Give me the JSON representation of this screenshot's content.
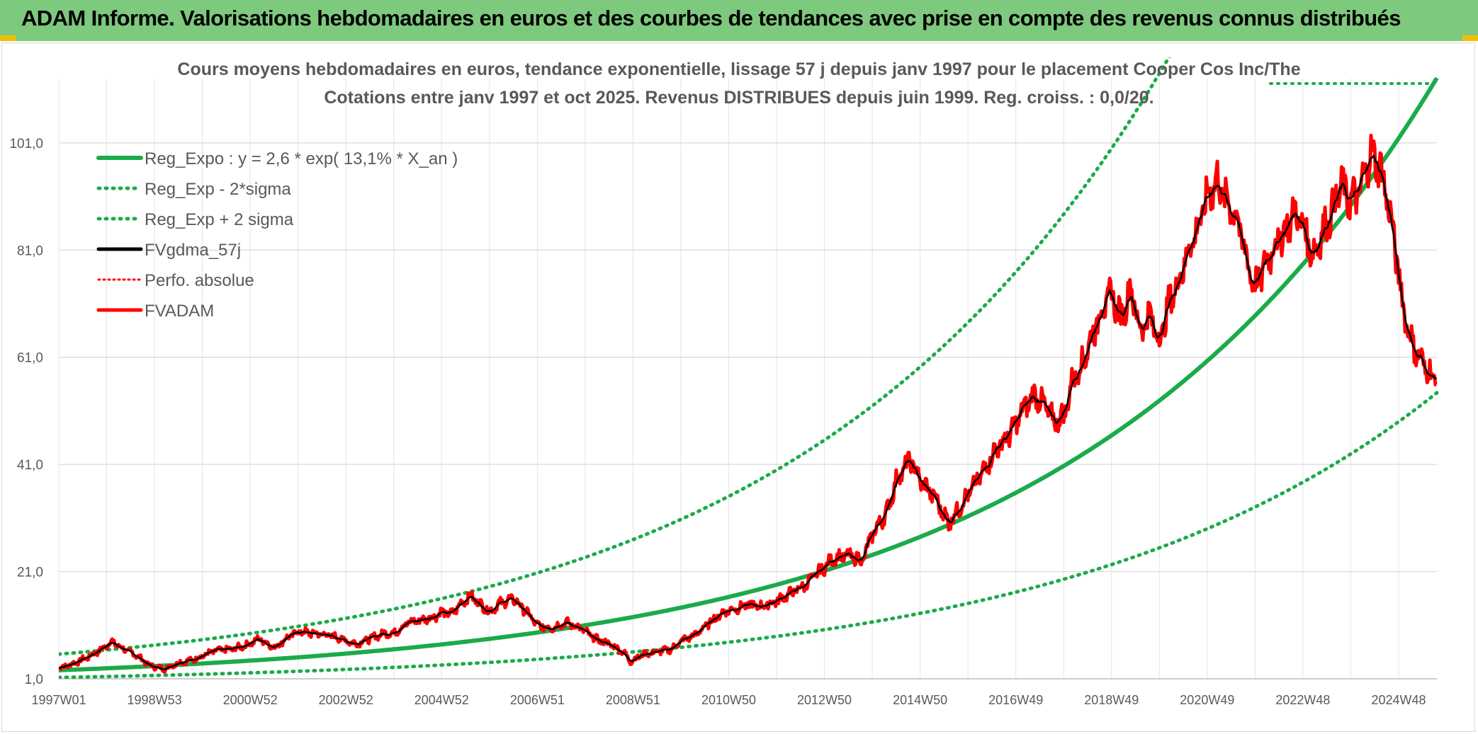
{
  "header": {
    "title": "ADAM Informe. Valorisations hebdomadaires en euros et des courbes de tendances avec prise en compte des revenus connus distribués",
    "background_color": "#7dc97d"
  },
  "chart_data": {
    "type": "line",
    "title": "Cours moyens hebdomadaires en euros, tendance exponentielle, lissage 57 j depuis janv 1997 pour le placement Cooper Cos Inc/The",
    "subtitle": "Cotations entre janv 1997 et oct 2025. Revenus DISTRIBUES depuis juin 1999. Reg. croiss. : 0,0/20.",
    "x_tick_labels": [
      "1997W01",
      "1998W53",
      "2000W52",
      "2002W52",
      "2004W52",
      "2006W51",
      "2008W51",
      "2010W50",
      "2012W50",
      "2014W50",
      "2016W49",
      "2018W49",
      "2020W49",
      "2022W48",
      "2024W48"
    ],
    "x_tick_years": [
      1997.0,
      1999.0,
      2001.0,
      2003.0,
      2005.0,
      2007.0,
      2009.0,
      2011.0,
      2013.0,
      2015.0,
      2017.0,
      2019.0,
      2021.0,
      2023.0,
      2025.0
    ],
    "xlim": [
      1997.0,
      2025.8
    ],
    "y_tick_labels": [
      "1,0",
      "21,0",
      "41,0",
      "61,0",
      "81,0",
      "101,0"
    ],
    "y_ticks": [
      1,
      21,
      41,
      61,
      81,
      101
    ],
    "ylim": [
      1,
      113
    ],
    "grid": true,
    "legend_position": "top-left",
    "series": [
      {
        "name": "Reg_Expo : y = 2,6 * exp( 13,1% *  X_an )",
        "style": "solid",
        "color": "#1aab4a",
        "a": 2.6,
        "b": 0.131
      },
      {
        "name": "Reg_Exp - 2*sigma",
        "style": "dotted",
        "color": "#1aab4a",
        "a": 1.25,
        "b": 0.131
      },
      {
        "name": "Reg_Exp + 2 sigma",
        "style": "dotted",
        "color": "#1aab4a",
        "a": 5.6,
        "b": 0.131
      },
      {
        "name": "FVgdma_57j",
        "style": "solid",
        "color": "#000000"
      },
      {
        "name": "Perfo. absolue",
        "style": "dotted",
        "color": "#ff0000"
      },
      {
        "name": "FVADAM",
        "style": "solid",
        "color": "#ff0000",
        "x": [
          1997.0,
          1997.3,
          1997.6,
          1997.9,
          1998.1,
          1998.3,
          1998.6,
          1998.9,
          1999.2,
          1999.5,
          1999.8,
          2000.0,
          2000.3,
          2000.6,
          2000.9,
          2001.2,
          2001.5,
          2001.8,
          2002.0,
          2002.3,
          2002.6,
          2002.9,
          2003.2,
          2003.5,
          2003.8,
          2004.0,
          2004.3,
          2004.6,
          2004.9,
          2005.0,
          2005.2,
          2005.4,
          2005.6,
          2005.8,
          2006.0,
          2006.2,
          2006.5,
          2006.8,
          2007.0,
          2007.3,
          2007.6,
          2007.9,
          2008.2,
          2008.5,
          2008.8,
          2008.95,
          2009.2,
          2009.5,
          2009.8,
          2010.0,
          2010.3,
          2010.6,
          2010.9,
          2011.1,
          2011.4,
          2011.7,
          2012.0,
          2012.3,
          2012.6,
          2012.9,
          2013.2,
          2013.5,
          2013.8,
          2014.0,
          2014.3,
          2014.5,
          2014.8,
          2015.0,
          2015.3,
          2015.6,
          2015.9,
          2016.2,
          2016.4,
          2016.6,
          2016.9,
          2017.2,
          2017.4,
          2017.6,
          2017.8,
          2018.0,
          2018.2,
          2018.4,
          2018.6,
          2018.8,
          2019.0,
          2019.2,
          2019.4,
          2019.6,
          2019.8,
          2020.0,
          2020.2,
          2020.4,
          2020.6,
          2020.8,
          2021.0,
          2021.2,
          2021.4,
          2021.6,
          2021.8,
          2022.0,
          2022.2,
          2022.4,
          2022.6,
          2022.8,
          2023.0,
          2023.2,
          2023.4,
          2023.6,
          2023.8,
          2024.0,
          2024.2,
          2024.4,
          2024.6,
          2024.8,
          2024.95,
          2025.1,
          2025.3,
          2025.5,
          2025.65,
          2025.8
        ],
        "y": [
          3.0,
          3.8,
          5.0,
          6.5,
          8.0,
          6.8,
          5.5,
          3.5,
          2.8,
          4.0,
          4.5,
          5.3,
          6.3,
          6.5,
          7.2,
          8.5,
          6.8,
          8.8,
          9.8,
          9.5,
          9.2,
          8.5,
          7.5,
          8.5,
          9.5,
          9.5,
          11.5,
          12.0,
          12.8,
          13.5,
          13.0,
          15.0,
          16.5,
          15.0,
          13.5,
          15.0,
          16.0,
          13.2,
          11.0,
          10.5,
          11.5,
          10.5,
          8.5,
          7.5,
          6.0,
          4.2,
          5.5,
          6.0,
          6.5,
          8.0,
          9.2,
          11.5,
          13.5,
          14.0,
          14.8,
          14.5,
          15.5,
          17.0,
          18.5,
          21.0,
          23.5,
          24.0,
          23.0,
          28.0,
          32.0,
          38.0,
          42.0,
          38.0,
          35.0,
          30.0,
          34.0,
          38.0,
          41.0,
          44.0,
          47.0,
          52.0,
          54.0,
          52.0,
          49.0,
          50.0,
          57.0,
          60.0,
          65.0,
          70.0,
          73.0,
          68.0,
          74.0,
          66.0,
          69.0,
          64.0,
          71.0,
          75.0,
          81.0,
          85.0,
          91.0,
          94.0,
          90.0,
          88.0,
          80.0,
          74.0,
          78.0,
          82.0,
          84.0,
          88.0,
          86.0,
          80.0,
          84.0,
          88.0,
          93.0,
          90.0,
          92.0,
          99.0,
          97.0,
          89.0,
          80.0,
          70.0,
          63.0,
          60.0,
          58.0,
          56.5
        ]
      }
    ]
  }
}
